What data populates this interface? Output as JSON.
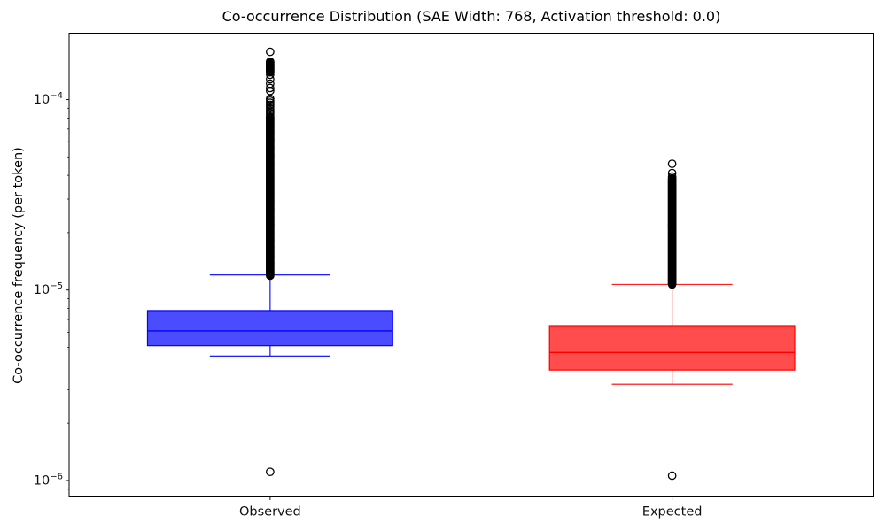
{
  "chart_data": {
    "type": "boxplot",
    "title": "Co-occurrence Distribution (SAE Width: 768, Activation threshold: 0.0)",
    "xlabel": "",
    "ylabel": "Co-occurrence frequency (per token)",
    "y_scale": "log",
    "grid": false,
    "legend": "none",
    "ylim": [
      8.2e-07,
      0.000223
    ],
    "xlim": [
      0.5,
      2.5
    ],
    "categories": [
      "Observed",
      "Expected"
    ],
    "y_ticks": [
      {
        "value": 0.0001,
        "base": "10",
        "exp": "−4"
      },
      {
        "value": 1e-05,
        "base": "10",
        "exp": "−5"
      },
      {
        "value": 1e-06,
        "base": "10",
        "exp": "−6"
      }
    ],
    "y_minor_ticks": [
      9e-07,
      2e-06,
      3e-06,
      4e-06,
      5e-06,
      6e-06,
      7e-06,
      8e-06,
      9e-06,
      2e-05,
      3e-05,
      4e-05,
      5e-05,
      6e-05,
      7e-05,
      8e-05,
      9e-05,
      0.0002
    ],
    "layout": {
      "box_width": 0.61,
      "cap_width": 0.3
    },
    "series": [
      {
        "name": "Observed",
        "position": 1,
        "edge_color": "#0000ff",
        "fill_color": "rgba(0,0,255,0.7)",
        "stats": {
          "whisker_low": 4.5e-06,
          "q1": 5.1e-06,
          "median": 6.1e-06,
          "q3": 7.8e-06,
          "whisker_high": 1.2e-05
        },
        "outliers_discrete": [
          0.000178,
          0.000135,
          0.000128,
          0.000121,
          0.000115,
          0.000111,
          1.11e-06
        ],
        "outlier_columns": [
          {
            "min": 0.000139,
            "max": 0.000158,
            "count": 14
          },
          {
            "min": 8.3e-05,
            "max": 0.000101,
            "count": 9
          },
          {
            "min": 1.19e-05,
            "max": 8.1e-05,
            "count": 170
          }
        ]
      },
      {
        "name": "Expected",
        "position": 2,
        "edge_color": "#ff0000",
        "fill_color": "rgba(255,0,0,0.7)",
        "stats": {
          "whisker_low": 3.2e-06,
          "q1": 3.8e-06,
          "median": 4.7e-06,
          "q3": 6.5e-06,
          "whisker_high": 1.07e-05
        },
        "outliers_discrete": [
          4.6e-05,
          4.11e-05,
          3.94e-05,
          1.06e-06
        ],
        "outlier_columns": [
          {
            "min": 1.07e-05,
            "max": 3.86e-05,
            "count": 170
          }
        ]
      }
    ],
    "colors": {
      "observed": "#0000ff",
      "expected": "#ff0000",
      "outlier_marker": "#000000",
      "axes": "#000000",
      "background": "#ffffff"
    }
  }
}
